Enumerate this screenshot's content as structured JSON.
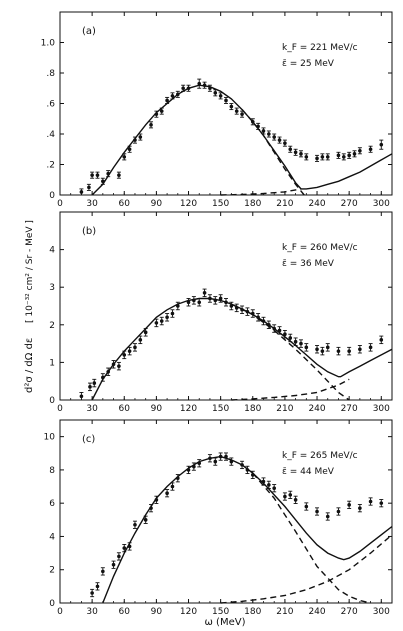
{
  "figure": {
    "shared_xlabel": "ω (MeV)",
    "shared_ylabel_lhs": "d²σ / dΩ dε",
    "shared_ylabel_unit": "[ 10⁻³² cm² / Sr - MeV ]"
  },
  "chart_data": [
    {
      "type": "scatter",
      "panel_label": "(a)",
      "annotations": [
        "k_F = 221 MeV/c",
        "ε̄ = 25 MeV"
      ],
      "xlabel": "",
      "ylabel": "",
      "xlim": [
        0,
        310
      ],
      "ylim": [
        0,
        1.2
      ],
      "x_ticks": [
        0,
        30,
        60,
        90,
        120,
        150,
        180,
        210,
        240,
        270,
        300
      ],
      "y_ticks": [
        0,
        0.2,
        0.4,
        0.6,
        0.8,
        1.0
      ],
      "y_tick_labels": [
        "0",
        ".2",
        ".4",
        ".6",
        ".8",
        "1.0"
      ],
      "grid": false,
      "data_points": {
        "x": [
          20,
          27,
          30,
          35,
          40,
          45,
          55,
          60,
          65,
          70,
          75,
          85,
          90,
          95,
          100,
          105,
          110,
          115,
          120,
          130,
          135,
          140,
          145,
          150,
          155,
          160,
          165,
          170,
          180,
          185,
          190,
          195,
          200,
          205,
          210,
          215,
          220,
          225,
          230,
          240,
          245,
          250,
          260,
          265,
          270,
          275,
          280,
          290,
          300
        ],
        "y": [
          0.02,
          0.05,
          0.13,
          0.13,
          0.09,
          0.14,
          0.13,
          0.25,
          0.3,
          0.36,
          0.38,
          0.46,
          0.53,
          0.55,
          0.62,
          0.65,
          0.66,
          0.7,
          0.7,
          0.73,
          0.72,
          0.7,
          0.67,
          0.65,
          0.62,
          0.58,
          0.55,
          0.53,
          0.48,
          0.45,
          0.42,
          0.4,
          0.38,
          0.36,
          0.34,
          0.3,
          0.28,
          0.27,
          0.25,
          0.24,
          0.25,
          0.25,
          0.26,
          0.25,
          0.26,
          0.27,
          0.29,
          0.3,
          0.33
        ],
        "err": [
          0.02,
          0.02,
          0.02,
          0.02,
          0.02,
          0.02,
          0.02,
          0.02,
          0.02,
          0.02,
          0.02,
          0.02,
          0.02,
          0.02,
          0.02,
          0.02,
          0.02,
          0.02,
          0.02,
          0.03,
          0.02,
          0.02,
          0.02,
          0.02,
          0.02,
          0.02,
          0.02,
          0.02,
          0.02,
          0.02,
          0.02,
          0.02,
          0.02,
          0.02,
          0.02,
          0.02,
          0.02,
          0.02,
          0.02,
          0.02,
          0.02,
          0.02,
          0.02,
          0.02,
          0.02,
          0.02,
          0.02,
          0.02,
          0.03
        ]
      },
      "solid_curve": {
        "x": [
          30,
          40,
          50,
          60,
          70,
          80,
          90,
          100,
          110,
          120,
          130,
          140,
          150,
          160,
          170,
          180,
          190,
          200,
          210,
          220,
          225,
          230,
          240,
          250,
          260,
          270,
          280,
          290,
          300,
          310
        ],
        "y": [
          0,
          0.07,
          0.18,
          0.28,
          0.37,
          0.46,
          0.54,
          0.6,
          0.66,
          0.7,
          0.72,
          0.71,
          0.68,
          0.63,
          0.56,
          0.48,
          0.39,
          0.29,
          0.19,
          0.08,
          0.04,
          0.04,
          0.05,
          0.07,
          0.09,
          0.12,
          0.15,
          0.19,
          0.23,
          0.27
        ]
      },
      "dashed_curve_1": {
        "x": [
          170,
          180,
          190,
          200,
          210,
          220,
          228
        ],
        "y": [
          0.56,
          0.48,
          0.39,
          0.28,
          0.17,
          0.07,
          0.0
        ]
      },
      "dashed_curve_2": {
        "x": [
          150,
          170,
          190,
          210,
          225
        ],
        "y": [
          0.0,
          0.003,
          0.01,
          0.02,
          0.04
        ]
      }
    },
    {
      "type": "scatter",
      "panel_label": "(b)",
      "annotations": [
        "k_F = 260 MeV/c",
        "ε̄ = 36 MeV"
      ],
      "xlabel": "",
      "ylabel": "",
      "xlim": [
        0,
        310
      ],
      "ylim": [
        0,
        5
      ],
      "x_ticks": [
        0,
        30,
        60,
        90,
        120,
        150,
        180,
        210,
        240,
        270,
        300
      ],
      "y_ticks": [
        0,
        1,
        2,
        3,
        4
      ],
      "y_tick_labels": [
        "0",
        "1",
        "2",
        "3",
        "4"
      ],
      "grid": false,
      "data_points": {
        "x": [
          20,
          28,
          32,
          40,
          45,
          50,
          55,
          60,
          65,
          70,
          75,
          80,
          90,
          95,
          100,
          105,
          110,
          120,
          125,
          130,
          135,
          140,
          145,
          150,
          155,
          160,
          165,
          170,
          175,
          180,
          185,
          190,
          195,
          200,
          205,
          210,
          215,
          220,
          225,
          230,
          240,
          245,
          250,
          260,
          270,
          280,
          290,
          300
        ],
        "y": [
          0.1,
          0.35,
          0.45,
          0.6,
          0.75,
          0.95,
          0.9,
          1.2,
          1.3,
          1.4,
          1.6,
          1.8,
          2.05,
          2.1,
          2.2,
          2.3,
          2.5,
          2.6,
          2.65,
          2.6,
          2.85,
          2.7,
          2.65,
          2.7,
          2.6,
          2.5,
          2.45,
          2.4,
          2.35,
          2.3,
          2.2,
          2.1,
          2.0,
          1.9,
          1.85,
          1.75,
          1.65,
          1.55,
          1.5,
          1.4,
          1.35,
          1.3,
          1.4,
          1.3,
          1.3,
          1.35,
          1.4,
          1.6
        ]
      },
      "solid_curve": {
        "x": [
          30,
          40,
          50,
          60,
          70,
          80,
          90,
          100,
          110,
          120,
          130,
          140,
          150,
          160,
          170,
          180,
          190,
          200,
          210,
          220,
          230,
          240,
          250,
          260,
          262,
          270,
          280,
          290,
          300,
          310
        ],
        "y": [
          0,
          0.55,
          0.95,
          1.3,
          1.6,
          1.9,
          2.2,
          2.4,
          2.55,
          2.65,
          2.7,
          2.7,
          2.65,
          2.55,
          2.42,
          2.27,
          2.1,
          1.9,
          1.68,
          1.45,
          1.2,
          0.95,
          0.75,
          0.62,
          0.62,
          0.75,
          0.9,
          1.05,
          1.2,
          1.35
        ]
      },
      "dashed_curve_1": {
        "x": [
          160,
          180,
          200,
          220,
          240,
          260,
          270
        ],
        "y": [
          2.55,
          2.27,
          1.85,
          1.35,
          0.8,
          0.2,
          0.0
        ]
      },
      "dashed_curve_2": {
        "x": [
          160,
          180,
          200,
          220,
          240,
          260,
          270
        ],
        "y": [
          0.0,
          0.03,
          0.07,
          0.12,
          0.2,
          0.4,
          0.55
        ]
      }
    },
    {
      "type": "scatter",
      "panel_label": "(c)",
      "annotations": [
        "k_F = 265 MeV/c",
        "ε̄ = 44 MeV"
      ],
      "xlabel": "ω (MeV)",
      "ylabel": "",
      "xlim": [
        0,
        310
      ],
      "ylim": [
        0,
        11
      ],
      "x_ticks": [
        0,
        30,
        60,
        90,
        120,
        150,
        180,
        210,
        240,
        270,
        300
      ],
      "y_ticks": [
        0,
        2,
        4,
        6,
        8,
        10
      ],
      "y_tick_labels": [
        "0",
        "2",
        "4",
        "6",
        "8",
        "10"
      ],
      "grid": false,
      "data_points": {
        "x": [
          30,
          35,
          40,
          50,
          55,
          60,
          65,
          70,
          80,
          85,
          90,
          100,
          105,
          110,
          120,
          125,
          130,
          140,
          145,
          150,
          155,
          160,
          170,
          175,
          180,
          190,
          195,
          200,
          210,
          215,
          220,
          230,
          240,
          250,
          260,
          270,
          280,
          290,
          300
        ],
        "y": [
          0.6,
          1.0,
          1.9,
          2.3,
          2.8,
          3.3,
          3.4,
          4.7,
          5.0,
          5.7,
          6.2,
          6.6,
          7.0,
          7.5,
          8.0,
          8.2,
          8.4,
          8.7,
          8.5,
          8.8,
          8.8,
          8.5,
          8.3,
          8.0,
          7.7,
          7.3,
          7.1,
          6.9,
          6.4,
          6.5,
          6.2,
          5.8,
          5.5,
          5.2,
          5.5,
          5.9,
          5.7,
          6.1,
          6.0
        ]
      },
      "solid_curve": {
        "x": [
          40,
          50,
          60,
          70,
          80,
          90,
          100,
          110,
          120,
          130,
          140,
          150,
          160,
          170,
          180,
          190,
          200,
          210,
          220,
          230,
          240,
          250,
          260,
          265,
          270,
          280,
          290,
          300,
          310
        ],
        "y": [
          0,
          1.6,
          3.0,
          4.2,
          5.3,
          6.3,
          7.0,
          7.6,
          8.1,
          8.5,
          8.7,
          8.8,
          8.6,
          8.3,
          7.8,
          7.2,
          6.5,
          5.8,
          5.0,
          4.2,
          3.5,
          3.0,
          2.7,
          2.6,
          2.7,
          3.1,
          3.6,
          4.1,
          4.6
        ]
      },
      "dashed_curve_1": {
        "x": [
          180,
          200,
          220,
          240,
          260,
          270,
          280,
          290
        ],
        "y": [
          7.8,
          6.3,
          4.3,
          2.2,
          0.8,
          0.4,
          0.15,
          0.0
        ]
      },
      "dashed_curve_2": {
        "x": [
          150,
          170,
          190,
          210,
          230,
          250,
          270,
          290,
          310
        ],
        "y": [
          0.0,
          0.1,
          0.25,
          0.45,
          0.8,
          1.3,
          2.0,
          3.0,
          4.1
        ]
      }
    }
  ]
}
